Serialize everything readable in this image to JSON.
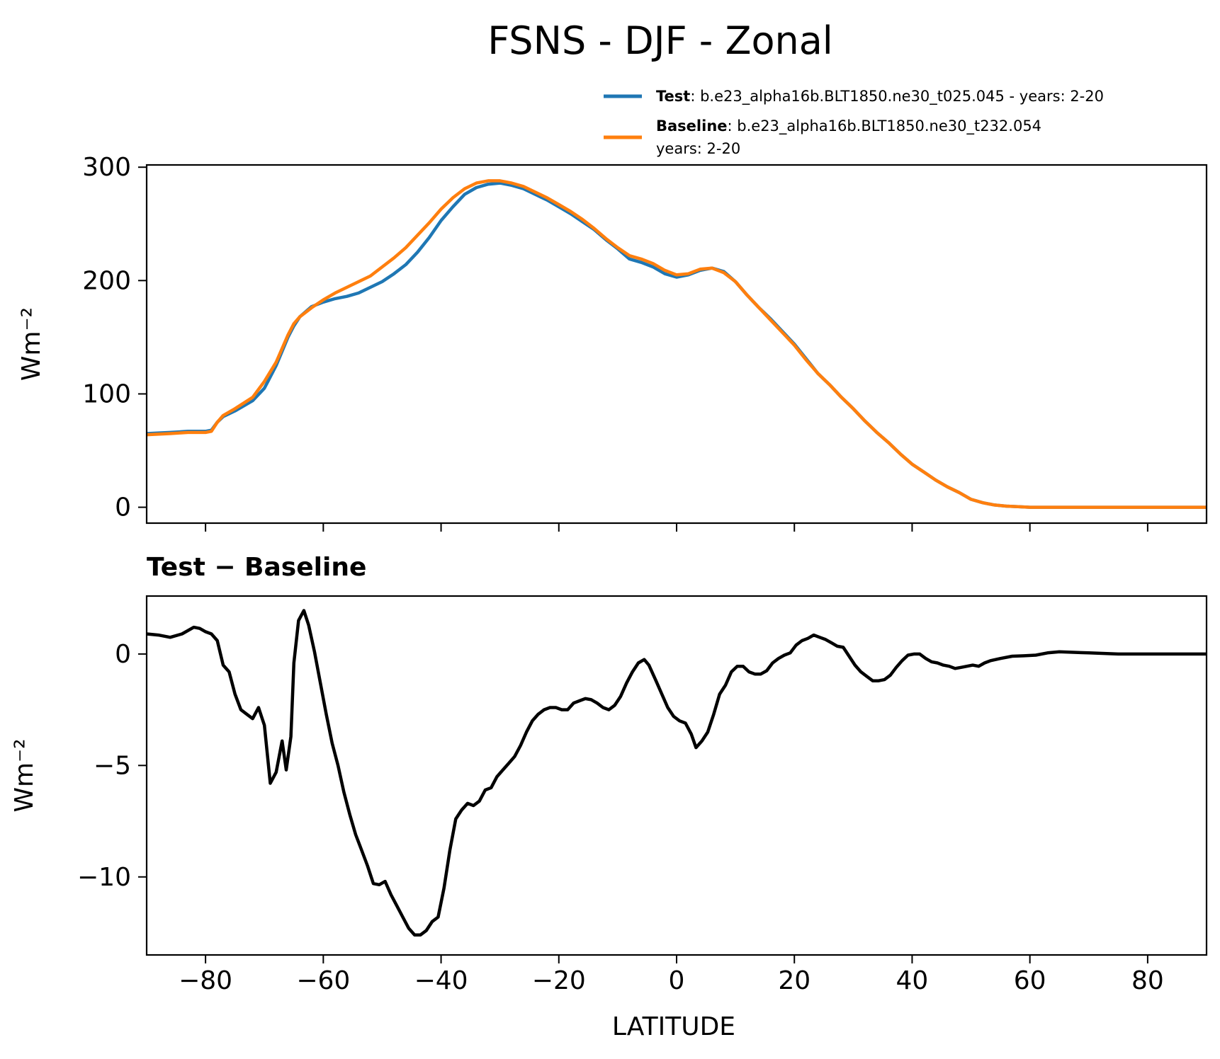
{
  "title": "FSNS - DJF - Zonal",
  "legend": {
    "test": {
      "label_bold": "Test",
      "label_rest": ": b.e23_alpha16b.BLT1850.ne30_t025.045 - years: 2-20",
      "color": "#1f77b4"
    },
    "baseline": {
      "label_bold": "Baseline",
      "label_rest": ": b.e23_alpha16b.BLT1850.ne30_t232.054",
      "label_line2": "years: 2-20",
      "color": "#ff7f0e"
    }
  },
  "chart_data": [
    {
      "type": "line",
      "name": "zonal-mean",
      "title": "",
      "xlabel": "",
      "ylabel": "Wm⁻²",
      "xlim": [
        -90,
        90
      ],
      "ylim": [
        -14,
        302
      ],
      "xticks": [
        -80,
        -60,
        -40,
        -20,
        0,
        20,
        40,
        60,
        80
      ],
      "yticks": [
        0,
        100,
        200,
        300
      ],
      "ytick_labels": [
        "0",
        "100",
        "200",
        "300"
      ],
      "x": [
        -90,
        -86,
        -83,
        -80,
        -79,
        -78,
        -77,
        -75,
        -72,
        -70,
        -68,
        -66,
        -65,
        -64,
        -62,
        -60,
        -58,
        -56,
        -54,
        -52,
        -50,
        -48,
        -46,
        -44,
        -42,
        -40,
        -38,
        -36,
        -34,
        -32,
        -30,
        -28,
        -26,
        -24,
        -22,
        -20,
        -18,
        -16,
        -14,
        -12,
        -10,
        -8,
        -6,
        -4,
        -2,
        0,
        2,
        4,
        6,
        8,
        10,
        12,
        14,
        16,
        18,
        20,
        22,
        24,
        26,
        28,
        30,
        32,
        34,
        36,
        38,
        40,
        42,
        44,
        46,
        48,
        50,
        52,
        54,
        56,
        58,
        60,
        62,
        64,
        66,
        68,
        70,
        75,
        80,
        85,
        90
      ],
      "series": [
        {
          "name": "Test",
          "color": "#1f77b4",
          "values": [
            65,
            66,
            67,
            67,
            68,
            75,
            80,
            85,
            94,
            105,
            125,
            150,
            160,
            168,
            177,
            181,
            184,
            186,
            189,
            194,
            199,
            206,
            214,
            225,
            238,
            253,
            265,
            276,
            282,
            285,
            286,
            284,
            281,
            276,
            271,
            265,
            259,
            252,
            245,
            236,
            228,
            219,
            216,
            212,
            206,
            203,
            205,
            209,
            211,
            208,
            199,
            187,
            176,
            166,
            155,
            144,
            131,
            118,
            108,
            97,
            87,
            76,
            66,
            57,
            47,
            38,
            31,
            24,
            18,
            13,
            7,
            4,
            2,
            1,
            0.5,
            0,
            0,
            0,
            0,
            0,
            0,
            0,
            0,
            0,
            0
          ]
        },
        {
          "name": "Baseline",
          "color": "#ff7f0e",
          "values": [
            64,
            65,
            66,
            66,
            67,
            75,
            81,
            87,
            97,
            111,
            128,
            152,
            162,
            168,
            176,
            183,
            189,
            194,
            199,
            204,
            212,
            220,
            229,
            240,
            251,
            263,
            273,
            281,
            286,
            288,
            288,
            286,
            283,
            278,
            273,
            267,
            261,
            254,
            246,
            237,
            229,
            222,
            219,
            215,
            209,
            205,
            206,
            210,
            211,
            207,
            199,
            187,
            176,
            165,
            154,
            143,
            130,
            118,
            108,
            97,
            87,
            76,
            66,
            57,
            47,
            38,
            31,
            24,
            18,
            13,
            7,
            4,
            2,
            1,
            0.5,
            0,
            0,
            0,
            0,
            0,
            0,
            0,
            0,
            0,
            0
          ]
        }
      ]
    },
    {
      "type": "line",
      "name": "difference",
      "title": "Test − Baseline",
      "xlabel": "LATITUDE",
      "ylabel": "Wm⁻²",
      "xlim": [
        -90,
        90
      ],
      "ylim": [
        -13.5,
        2.6
      ],
      "xticks": [
        -80,
        -60,
        -40,
        -20,
        0,
        20,
        40,
        60,
        80
      ],
      "xtick_labels": [
        "−80",
        "−60",
        "−40",
        "−20",
        "0",
        "20",
        "40",
        "60",
        "80"
      ],
      "yticks": [
        0,
        -5,
        -10
      ],
      "ytick_labels": [
        "0",
        "−5",
        "−10"
      ],
      "series": [
        {
          "name": "Test − Baseline",
          "color": "#000000",
          "points": [
            [
              -90,
              0.9
            ],
            [
              -88,
              0.85
            ],
            [
              -86,
              0.75
            ],
            [
              -84,
              0.9
            ],
            [
              -82,
              1.2
            ],
            [
              -81,
              1.15
            ],
            [
              -80,
              1.0
            ],
            [
              -79,
              0.9
            ],
            [
              -78,
              0.6
            ],
            [
              -77,
              -0.5
            ],
            [
              -76,
              -0.8
            ],
            [
              -75,
              -1.8
            ],
            [
              -74,
              -2.5
            ],
            [
              -73,
              -2.7
            ],
            [
              -72,
              -2.9
            ],
            [
              -71,
              -2.4
            ],
            [
              -70,
              -3.2
            ],
            [
              -69,
              -5.8
            ],
            [
              -68,
              -5.3
            ],
            [
              -67,
              -3.9
            ],
            [
              -66.3,
              -5.2
            ],
            [
              -65.5,
              -3.7
            ],
            [
              -65,
              -0.4
            ],
            [
              -64.2,
              1.5
            ],
            [
              -63.3,
              1.95
            ],
            [
              -62.5,
              1.3
            ],
            [
              -61.5,
              0.1
            ],
            [
              -60.5,
              -1.3
            ],
            [
              -59.5,
              -2.7
            ],
            [
              -58.5,
              -4.0
            ],
            [
              -57.5,
              -5.0
            ],
            [
              -56.5,
              -6.2
            ],
            [
              -55.5,
              -7.2
            ],
            [
              -54.5,
              -8.1
            ],
            [
              -53.5,
              -8.8
            ],
            [
              -52.5,
              -9.5
            ],
            [
              -51.5,
              -10.3
            ],
            [
              -50.5,
              -10.35
            ],
            [
              -49.5,
              -10.2
            ],
            [
              -48.5,
              -10.8
            ],
            [
              -47.5,
              -11.3
            ],
            [
              -46.5,
              -11.8
            ],
            [
              -45.5,
              -12.3
            ],
            [
              -44.5,
              -12.6
            ],
            [
              -43.5,
              -12.6
            ],
            [
              -42.5,
              -12.4
            ],
            [
              -41.5,
              -12.0
            ],
            [
              -40.5,
              -11.8
            ],
            [
              -39.5,
              -10.5
            ],
            [
              -38.5,
              -8.8
            ],
            [
              -37.5,
              -7.4
            ],
            [
              -36.5,
              -7.0
            ],
            [
              -35.5,
              -6.7
            ],
            [
              -34.5,
              -6.8
            ],
            [
              -33.5,
              -6.6
            ],
            [
              -32.5,
              -6.1
            ],
            [
              -31.5,
              -6.0
            ],
            [
              -30.5,
              -5.5
            ],
            [
              -29.5,
              -5.2
            ],
            [
              -28.5,
              -4.9
            ],
            [
              -27.5,
              -4.6
            ],
            [
              -26.5,
              -4.1
            ],
            [
              -25.5,
              -3.5
            ],
            [
              -24.5,
              -3.0
            ],
            [
              -23.5,
              -2.7
            ],
            [
              -22.5,
              -2.5
            ],
            [
              -21.5,
              -2.4
            ],
            [
              -20.5,
              -2.4
            ],
            [
              -19.5,
              -2.5
            ],
            [
              -18.5,
              -2.5
            ],
            [
              -17.5,
              -2.2
            ],
            [
              -16.5,
              -2.1
            ],
            [
              -15.5,
              -2.0
            ],
            [
              -14.5,
              -2.05
            ],
            [
              -13.5,
              -2.2
            ],
            [
              -12.5,
              -2.4
            ],
            [
              -11.5,
              -2.5
            ],
            [
              -10.5,
              -2.3
            ],
            [
              -9.5,
              -1.9
            ],
            [
              -8.5,
              -1.3
            ],
            [
              -7.5,
              -0.8
            ],
            [
              -6.5,
              -0.4
            ],
            [
              -5.5,
              -0.25
            ],
            [
              -4.7,
              -0.5
            ],
            [
              -3.5,
              -1.2
            ],
            [
              -2.5,
              -1.8
            ],
            [
              -1.5,
              -2.4
            ],
            [
              -0.5,
              -2.8
            ],
            [
              0.5,
              -3.0
            ],
            [
              1.5,
              -3.1
            ],
            [
              2.5,
              -3.6
            ],
            [
              3.3,
              -4.2
            ],
            [
              4.3,
              -3.9
            ],
            [
              5.3,
              -3.5
            ],
            [
              6.3,
              -2.7
            ],
            [
              7.3,
              -1.8
            ],
            [
              8.3,
              -1.4
            ],
            [
              9.3,
              -0.8
            ],
            [
              10.3,
              -0.55
            ],
            [
              11.3,
              -0.55
            ],
            [
              12.3,
              -0.8
            ],
            [
              13.3,
              -0.9
            ],
            [
              14.3,
              -0.9
            ],
            [
              15.3,
              -0.75
            ],
            [
              16.3,
              -0.4
            ],
            [
              17.3,
              -0.2
            ],
            [
              18.3,
              -0.05
            ],
            [
              19.3,
              0.05
            ],
            [
              20.3,
              0.4
            ],
            [
              21.3,
              0.6
            ],
            [
              22.3,
              0.7
            ],
            [
              23.3,
              0.85
            ],
            [
              24.3,
              0.75
            ],
            [
              25.3,
              0.65
            ],
            [
              26.3,
              0.5
            ],
            [
              27.3,
              0.35
            ],
            [
              28.3,
              0.3
            ],
            [
              29.3,
              -0.1
            ],
            [
              30.3,
              -0.5
            ],
            [
              31.3,
              -0.8
            ],
            [
              32.3,
              -1.0
            ],
            [
              33.3,
              -1.2
            ],
            [
              34.3,
              -1.2
            ],
            [
              35.3,
              -1.15
            ],
            [
              36.3,
              -0.95
            ],
            [
              37.3,
              -0.6
            ],
            [
              38.3,
              -0.3
            ],
            [
              39.3,
              -0.05
            ],
            [
              40.3,
              0.0
            ],
            [
              41.3,
              0.0
            ],
            [
              42.3,
              -0.2
            ],
            [
              43.3,
              -0.35
            ],
            [
              44.3,
              -0.4
            ],
            [
              45.3,
              -0.5
            ],
            [
              46.3,
              -0.55
            ],
            [
              47.3,
              -0.65
            ],
            [
              48.3,
              -0.6
            ],
            [
              49.3,
              -0.55
            ],
            [
              50.3,
              -0.5
            ],
            [
              51.3,
              -0.55
            ],
            [
              52.3,
              -0.4
            ],
            [
              53.3,
              -0.3
            ],
            [
              55,
              -0.2
            ],
            [
              57,
              -0.1
            ],
            [
              59,
              -0.08
            ],
            [
              61,
              -0.05
            ],
            [
              63,
              0.05
            ],
            [
              65,
              0.1
            ],
            [
              67,
              0.08
            ],
            [
              70,
              0.05
            ],
            [
              75,
              0.0
            ],
            [
              80,
              0.0
            ],
            [
              85,
              0.0
            ],
            [
              90,
              0.0
            ]
          ]
        }
      ]
    }
  ]
}
